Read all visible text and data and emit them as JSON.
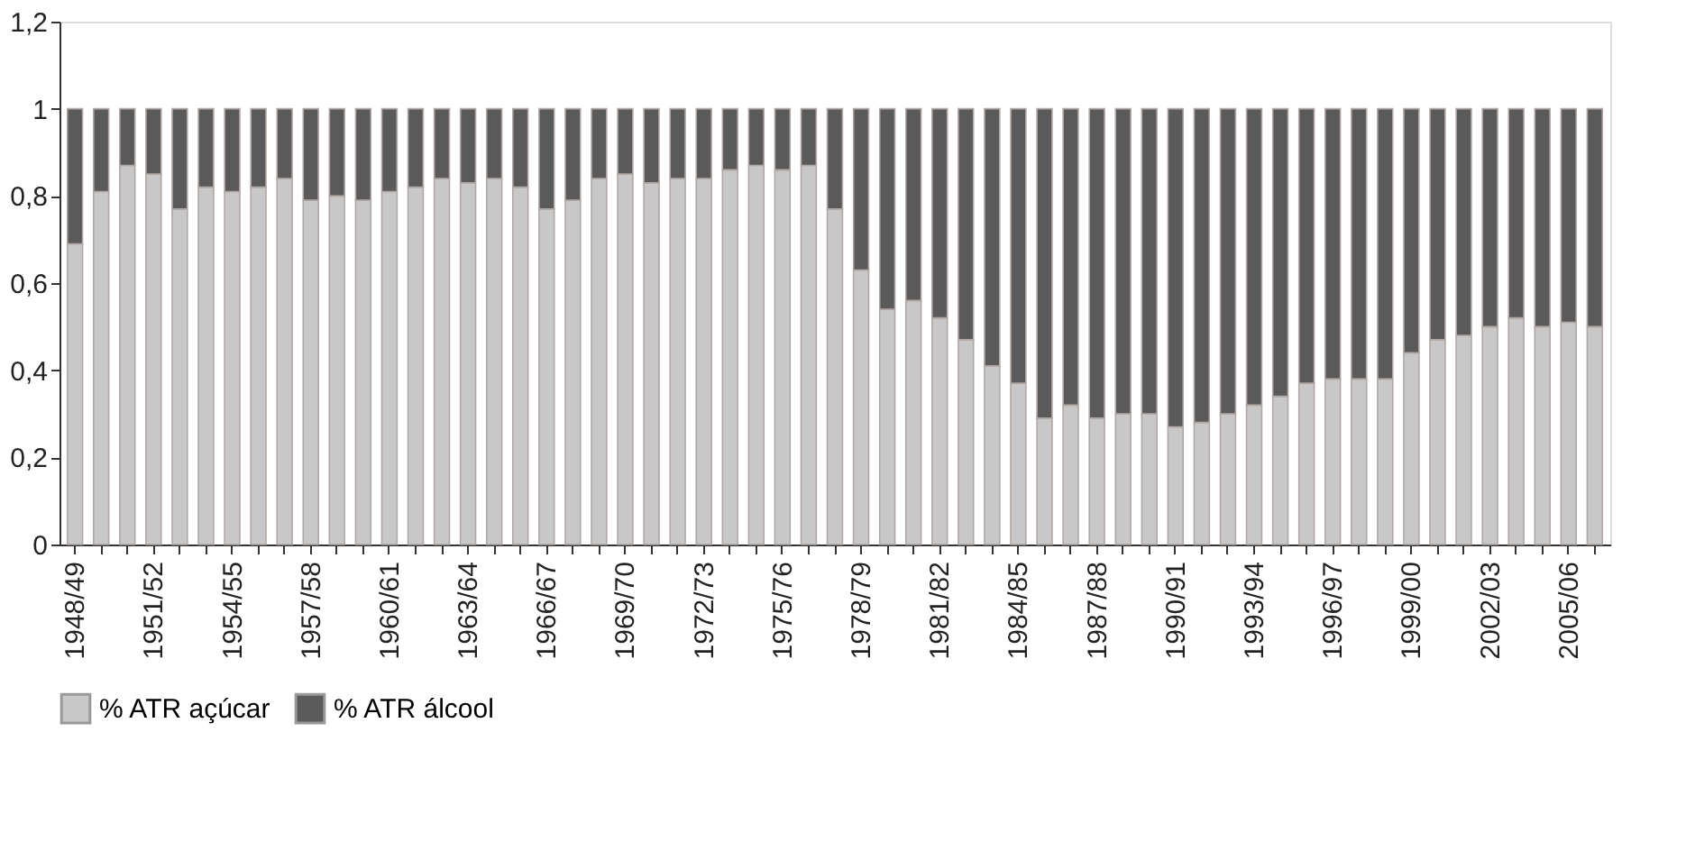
{
  "chart_data": {
    "type": "bar",
    "stacked": true,
    "legend": "bottom",
    "grid": false,
    "categories": [
      "1948/49",
      null,
      null,
      "1951/52",
      null,
      null,
      "1954/55",
      null,
      null,
      "1957/58",
      null,
      null,
      "1960/61",
      null,
      null,
      "1963/64",
      null,
      null,
      "1966/67",
      null,
      null,
      "1969/70",
      null,
      null,
      "1972/73",
      null,
      null,
      "1975/76",
      null,
      null,
      "1978/79",
      null,
      null,
      "1981/82",
      null,
      null,
      "1984/85",
      null,
      null,
      "1987/88",
      null,
      null,
      "1990/91",
      null,
      null,
      "1993/94",
      null,
      null,
      "1996/97",
      null,
      null,
      "1999/00",
      null,
      null,
      "2002/03",
      null,
      null,
      "2005/06",
      null
    ],
    "ylim": [
      0,
      1.2
    ],
    "yticks": [
      0,
      {
        "value": 0.2,
        "label": "0,2"
      },
      {
        "value": 0.4,
        "label": "0,4"
      },
      {
        "value": 0.6,
        "label": "0,6"
      },
      {
        "value": 0.8,
        "label": "0,8"
      },
      1,
      {
        "value": 1.2,
        "label": "1,2"
      }
    ],
    "series": [
      {
        "name": "% ATR açúcar",
        "color": "#c8c8c8",
        "values": [
          0.69,
          0.81,
          0.87,
          0.85,
          0.77,
          0.82,
          0.81,
          0.82,
          0.84,
          0.79,
          0.8,
          0.79,
          0.81,
          0.82,
          0.84,
          0.83,
          0.84,
          0.82,
          0.77,
          0.79,
          0.84,
          0.85,
          0.83,
          0.84,
          0.84,
          0.86,
          0.87,
          0.86,
          0.87,
          0.77,
          0.63,
          0.54,
          0.56,
          0.52,
          0.47,
          0.41,
          0.37,
          0.29,
          0.32,
          0.29,
          0.3,
          0.3,
          0.27,
          0.28,
          0.3,
          0.32,
          0.34,
          0.37,
          0.38,
          0.38,
          0.38,
          0.44,
          0.47,
          0.48,
          0.5,
          0.52,
          0.5,
          0.51,
          0.5
        ]
      },
      {
        "name": "% ATR álcool",
        "color": "#5a5a5a",
        "values": [
          0.31,
          0.19,
          0.13,
          0.15,
          0.23,
          0.18,
          0.19,
          0.18,
          0.16,
          0.21,
          0.2,
          0.21,
          0.19,
          0.18,
          0.16,
          0.17,
          0.16,
          0.18,
          0.23,
          0.21,
          0.16,
          0.15,
          0.17,
          0.16,
          0.16,
          0.14,
          0.13,
          0.14,
          0.13,
          0.23,
          0.37,
          0.46,
          0.44,
          0.48,
          0.53,
          0.59,
          0.63,
          0.71,
          0.68,
          0.71,
          0.7,
          0.7,
          0.73,
          0.72,
          0.7,
          0.68,
          0.66,
          0.63,
          0.62,
          0.62,
          0.62,
          0.56,
          0.53,
          0.52,
          0.5,
          0.48,
          0.5,
          0.49,
          0.5
        ]
      }
    ]
  }
}
